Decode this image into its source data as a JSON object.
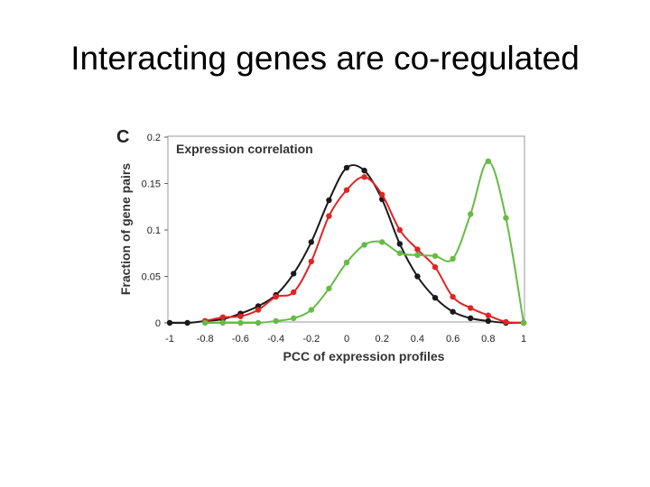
{
  "slide": {
    "title": "Interacting genes are co-regulated"
  },
  "colors": {
    "black": "#1a1a1a",
    "red": "#e02424",
    "green": "#66bb44"
  },
  "chart_data": {
    "type": "line",
    "panel_label": "C",
    "title": "Expression correlation",
    "xlabel": "PCC of expression profiles",
    "ylabel": "Fraction of gene pairs",
    "xlim": [
      -1,
      1
    ],
    "ylim": [
      0,
      0.2
    ],
    "x_ticks": [
      -1,
      -0.8,
      -0.6,
      -0.4,
      -0.2,
      0,
      0.2,
      0.4,
      0.6,
      0.8,
      1
    ],
    "x_tick_labels": [
      "-1",
      "-0.8",
      "-0.6",
      "-0.4",
      "-0.2",
      "0",
      "0.2",
      "0.4",
      "0.6",
      "0.8",
      "1"
    ],
    "y_ticks": [
      0,
      0.05,
      0.1,
      0.15,
      0.2
    ],
    "y_tick_labels": [
      "0",
      "0.05",
      "0.1",
      "0.15",
      "0.2"
    ],
    "grid": false,
    "legend": "none",
    "series": [
      {
        "color": "#1a1a1a",
        "x": [
          -1,
          -0.9,
          -0.8,
          -0.7,
          -0.6,
          -0.5,
          -0.4,
          -0.3,
          -0.2,
          -0.1,
          0,
          0.1,
          0.2,
          0.3,
          0.4,
          0.5,
          0.6,
          0.7,
          0.8,
          0.9,
          1
        ],
        "y": [
          0,
          0,
          0.002,
          0.004,
          0.01,
          0.018,
          0.03,
          0.053,
          0.087,
          0.132,
          0.167,
          0.164,
          0.133,
          0.085,
          0.05,
          0.027,
          0.012,
          0.005,
          0.002,
          0,
          0
        ]
      },
      {
        "color": "#e02424",
        "x": [
          -0.8,
          -0.7,
          -0.6,
          -0.5,
          -0.4,
          -0.3,
          -0.2,
          -0.1,
          0,
          0.1,
          0.2,
          0.3,
          0.4,
          0.5,
          0.6,
          0.7,
          0.8,
          0.9,
          1
        ],
        "y": [
          0.002,
          0.006,
          0.007,
          0.014,
          0.028,
          0.033,
          0.066,
          0.115,
          0.143,
          0.157,
          0.138,
          0.1,
          0.079,
          0.06,
          0.028,
          0.016,
          0.008,
          0.001,
          0
        ]
      },
      {
        "color": "#66bb44",
        "x": [
          -0.8,
          -0.7,
          -0.6,
          -0.5,
          -0.4,
          -0.3,
          -0.2,
          -0.1,
          0,
          0.1,
          0.2,
          0.3,
          0.4,
          0.5,
          0.6,
          0.7,
          0.8,
          0.9,
          1
        ],
        "y": [
          0,
          0,
          0,
          0,
          0.002,
          0.005,
          0.014,
          0.037,
          0.065,
          0.084,
          0.087,
          0.075,
          0.073,
          0.072,
          0.069,
          0.117,
          0.174,
          0.113,
          0
        ]
      }
    ]
  }
}
